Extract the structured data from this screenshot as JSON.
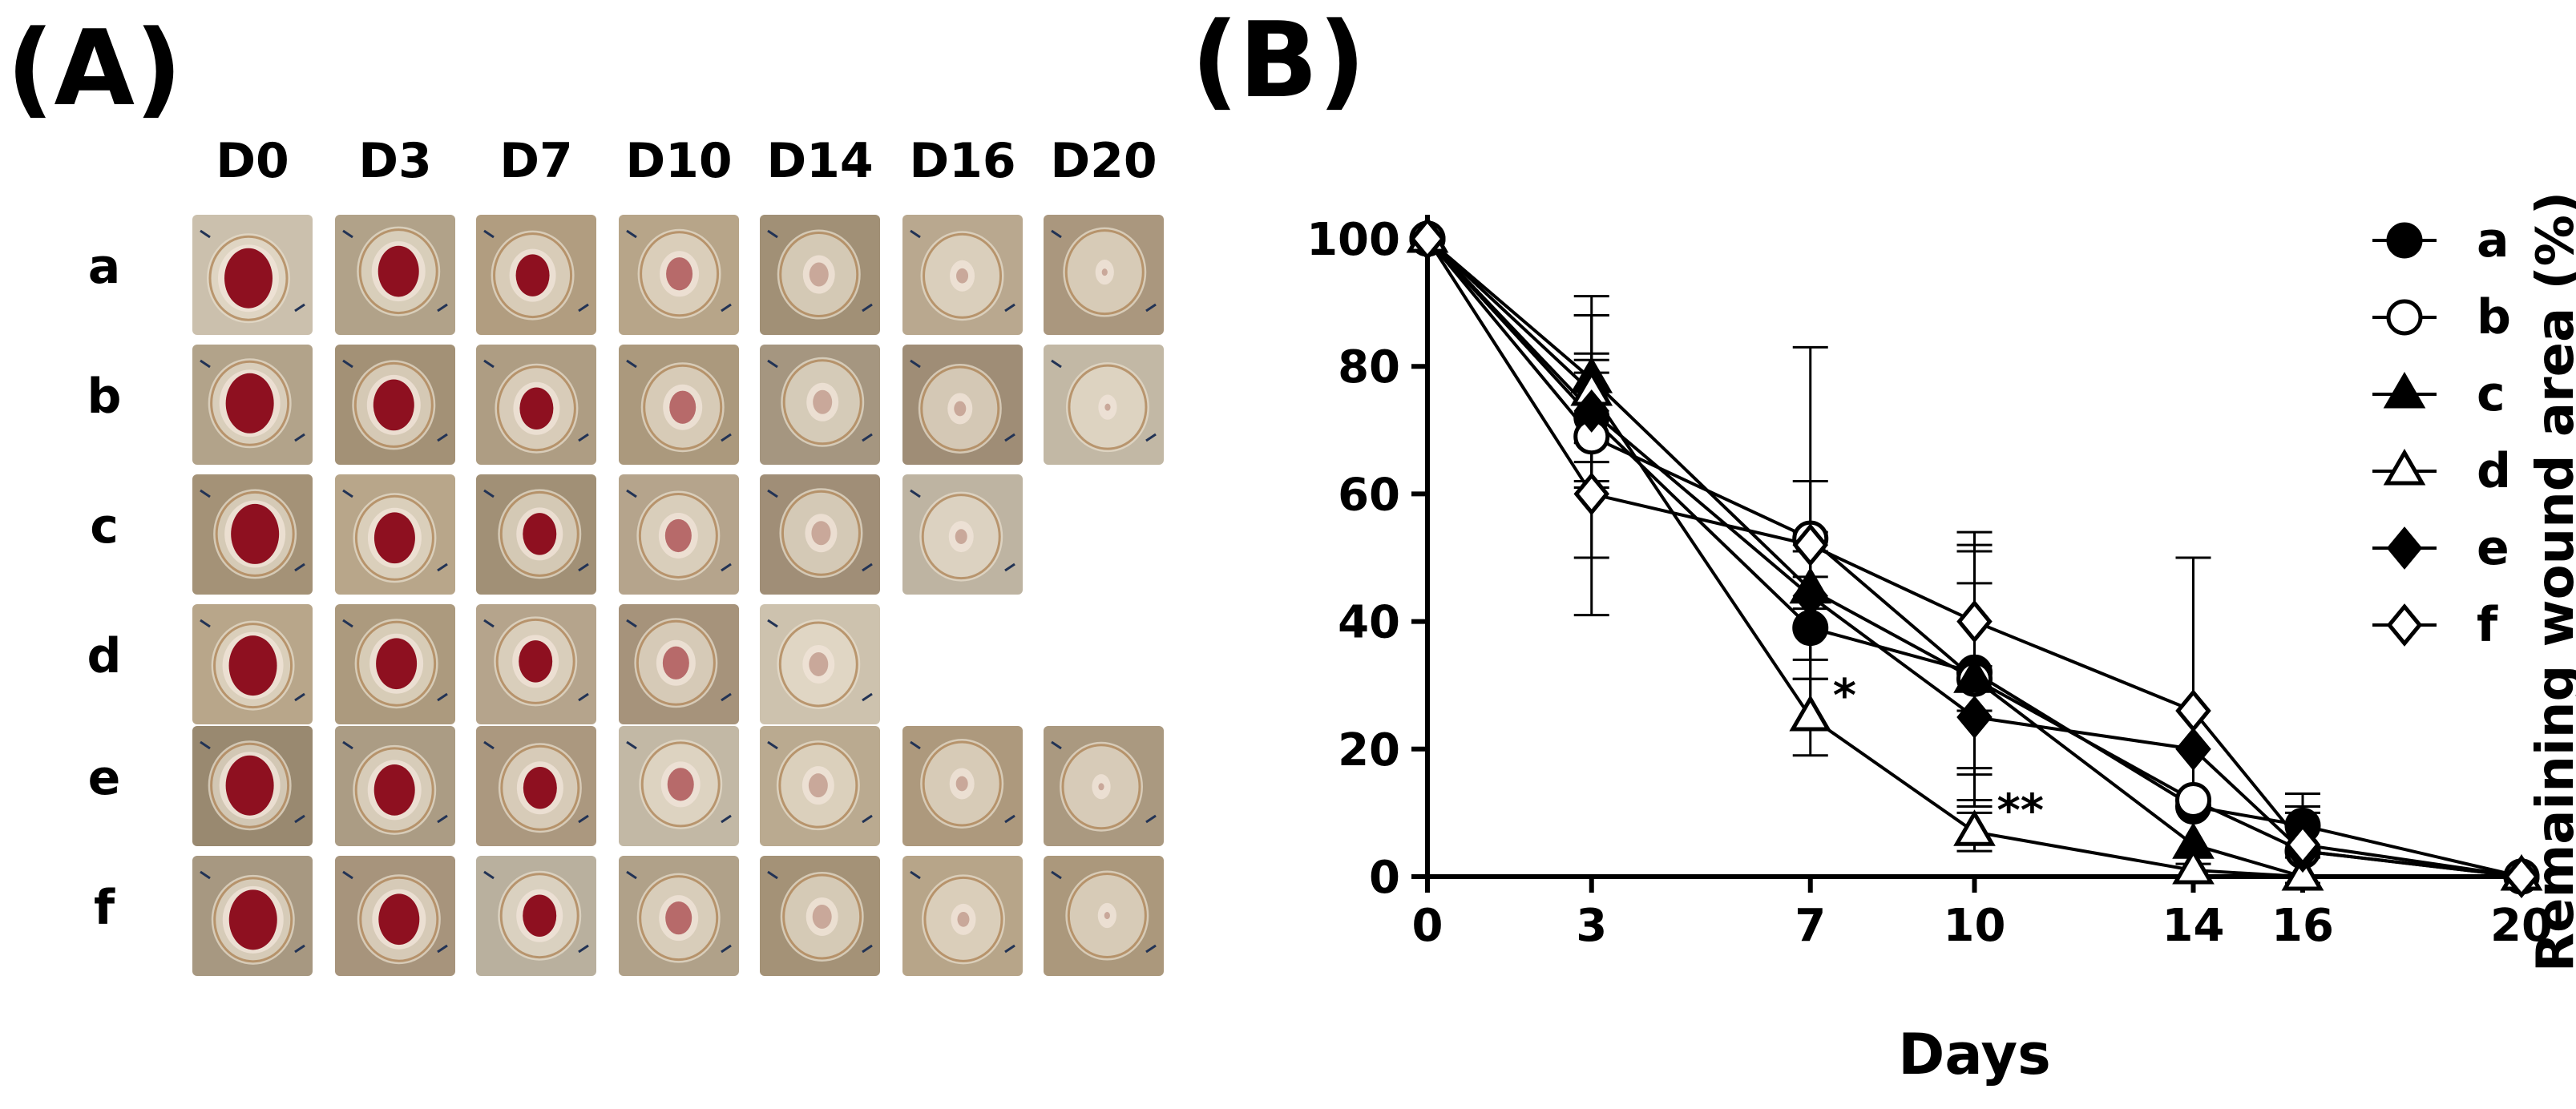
{
  "panel_a": {
    "label": "(A)",
    "columns": [
      "D0",
      "D3",
      "D7",
      "D10",
      "D14",
      "D16",
      "D20"
    ],
    "rows": [
      "a",
      "b",
      "c",
      "d",
      "e",
      "f"
    ],
    "available_images_per_row": [
      7,
      7,
      6,
      5,
      7,
      7
    ]
  },
  "panel_b": {
    "label": "(B)"
  },
  "colors": {
    "ink": "#000000",
    "wound_red": "#8e1020",
    "skin": "#c9b89c"
  },
  "chart_data": {
    "type": "line",
    "title": "",
    "xlabel": "Days",
    "ylabel": "Remaining wound area (%)",
    "x": [
      0,
      3,
      7,
      10,
      14,
      16,
      20
    ],
    "x_tick_labels": [
      "0",
      "3",
      "7",
      "10",
      "14",
      "16",
      "20"
    ],
    "ylim": [
      0,
      100
    ],
    "y_ticks": [
      0,
      20,
      40,
      60,
      80,
      100
    ],
    "y_tick_labels": [
      "0",
      "20",
      "40",
      "60",
      "80",
      "100"
    ],
    "grid": false,
    "legend_position": "top-right",
    "series": [
      {
        "name": "a",
        "marker": "circle-filled",
        "values": [
          100,
          72,
          39,
          32,
          11,
          8,
          0
        ],
        "errors": [
          0,
          10,
          8,
          20,
          0,
          5,
          0
        ]
      },
      {
        "name": "b",
        "marker": "circle-open",
        "values": [
          100,
          69,
          53,
          31,
          12,
          4,
          0
        ],
        "errors": [
          0,
          19,
          30,
          20,
          0,
          6,
          0
        ]
      },
      {
        "name": "c",
        "marker": "triangle-filled",
        "values": [
          100,
          78,
          45,
          31,
          5,
          0,
          0
        ],
        "errors": [
          0,
          10,
          6,
          15,
          0,
          0,
          0
        ]
      },
      {
        "name": "d",
        "marker": "triangle-open",
        "values": [
          100,
          76,
          25,
          7,
          1,
          0,
          0
        ],
        "errors": [
          0,
          15,
          6,
          3,
          0,
          0,
          0
        ]
      },
      {
        "name": "e",
        "marker": "diamond-filled",
        "values": [
          100,
          73,
          44,
          25,
          20,
          4,
          0
        ],
        "errors": [
          0,
          8,
          10,
          8,
          0,
          4,
          0
        ]
      },
      {
        "name": "f",
        "marker": "diamond-open",
        "values": [
          100,
          60,
          52,
          40,
          26,
          5,
          0
        ],
        "errors": [
          0,
          19,
          10,
          14,
          24,
          6,
          0
        ]
      }
    ],
    "annotations": [
      {
        "text": "*",
        "x": 7,
        "y": 25
      },
      {
        "text": "**",
        "x": 10,
        "y": 7
      }
    ]
  }
}
